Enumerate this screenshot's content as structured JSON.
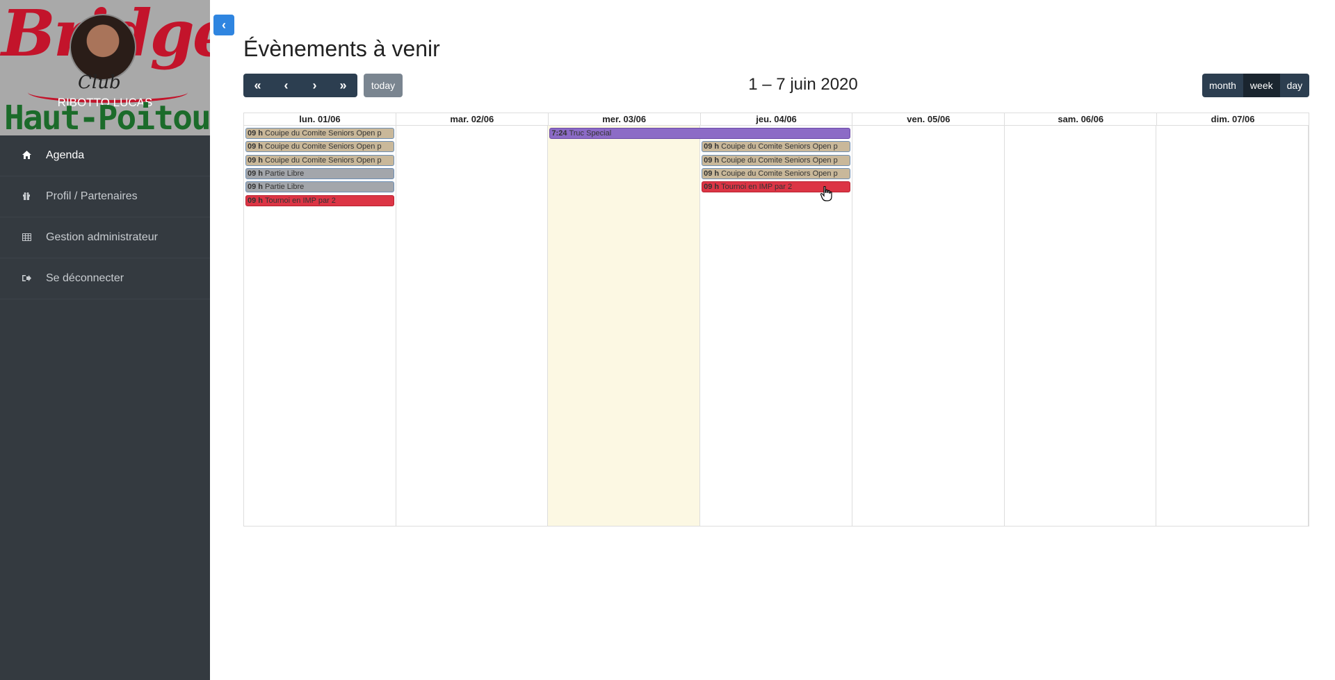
{
  "sidebar": {
    "brand_top": "Bridge",
    "brand_club": "Club",
    "brand_bottom": "Haut-Poitou",
    "user_name": "RIBOTTO LUCAS",
    "items": [
      {
        "label": "Agenda",
        "icon": "home-icon"
      },
      {
        "label": "Profil / Partenaires",
        "icon": "gift-icon"
      },
      {
        "label": "Gestion administrateur",
        "icon": "table-icon"
      },
      {
        "label": "Se déconnecter",
        "icon": "logout-icon"
      }
    ]
  },
  "header": {
    "title": "Évènements à venir"
  },
  "toolbar": {
    "today_label": "today",
    "range_title": "1 – 7 juin 2020",
    "views": [
      "month",
      "week",
      "day"
    ],
    "active_view": "week"
  },
  "calendar": {
    "days": [
      "lun. 01/06",
      "mar. 02/06",
      "mer. 03/06",
      "jeu. 04/06",
      "ven. 05/06",
      "sam. 06/06",
      "dim. 07/06"
    ],
    "today_index": 2,
    "events": [
      {
        "time": "09 h",
        "title": "Couipe du Comite Seniors Open p",
        "day": 0,
        "row": 0,
        "color": "beige"
      },
      {
        "time": "09 h",
        "title": "Couipe du Comite Seniors Open p",
        "day": 0,
        "row": 1,
        "color": "beige"
      },
      {
        "time": "09 h",
        "title": "Couipe du Comite Seniors Open p",
        "day": 0,
        "row": 2,
        "color": "beige"
      },
      {
        "time": "09 h",
        "title": "Partie Libre",
        "day": 0,
        "row": 3,
        "color": "gray"
      },
      {
        "time": "09 h",
        "title": "Partie Libre",
        "day": 0,
        "row": 4,
        "color": "gray"
      },
      {
        "time": "09 h",
        "title": "Tournoi en IMP par 2",
        "day": 0,
        "row": 5,
        "color": "red"
      },
      {
        "time": "7:24",
        "title": "Truc Special",
        "day": 2,
        "span": 2,
        "row": 0,
        "color": "purple"
      },
      {
        "time": "09 h",
        "title": "Couipe du Comite Seniors Open p",
        "day": 3,
        "row": 1,
        "color": "beige"
      },
      {
        "time": "09 h",
        "title": "Couipe du Comite Seniors Open p",
        "day": 3,
        "row": 2,
        "color": "beige"
      },
      {
        "time": "09 h",
        "title": "Couipe du Comite Seniors Open p",
        "day": 3,
        "row": 3,
        "color": "beige"
      },
      {
        "time": "09 h",
        "title": "Tournoi en IMP par 2",
        "day": 3,
        "row": 4,
        "color": "red"
      }
    ]
  },
  "colors": {
    "sidebar_bg": "#343a40",
    "nav_btn_bg": "#2c3e50",
    "toggle_bg": "#2f85e0",
    "today_bg": "#fcf8e3",
    "event_beige": "#c9b89a",
    "event_gray": "#a3a6ab",
    "event_red": "#dc3545",
    "event_purple": "#8c6bc6"
  }
}
